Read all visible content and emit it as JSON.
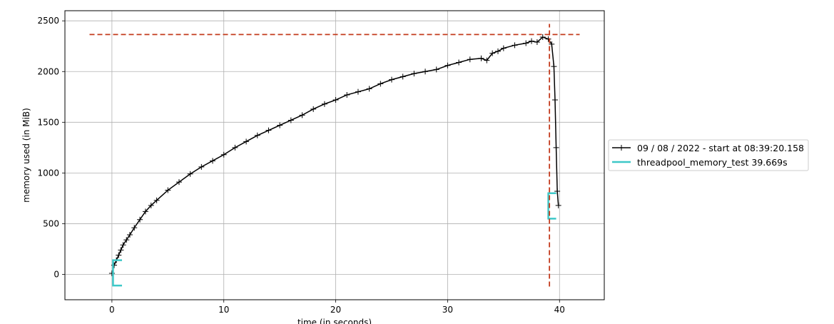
{
  "chart_data": {
    "type": "line",
    "title": "",
    "xlabel": "time (in seconds)",
    "ylabel": "memory used (in MiB)",
    "xlim": [
      -4.2,
      44
    ],
    "ylim": [
      -250,
      2600
    ],
    "xticks": [
      0,
      10,
      20,
      30,
      40
    ],
    "yticks": [
      0,
      500,
      1000,
      1500,
      2000,
      2500
    ],
    "grid": true,
    "legend_position": "outside-right",
    "series": [
      {
        "name": "09 / 08 / 2022 - start at 08:39:20.158",
        "color": "#000000",
        "marker": "+",
        "x": [
          0.0,
          0.2,
          0.4,
          0.6,
          0.8,
          1.0,
          1.3,
          1.6,
          2.0,
          2.5,
          3.0,
          3.5,
          4.0,
          5.0,
          6.0,
          7.0,
          8.0,
          9.0,
          10.0,
          11.0,
          12.0,
          13.0,
          14.0,
          15.0,
          16.0,
          17.0,
          18.0,
          19.0,
          20.0,
          21.0,
          22.0,
          23.0,
          24.0,
          25.0,
          26.0,
          27.0,
          28.0,
          29.0,
          30.0,
          31.0,
          32.0,
          33.0,
          33.5,
          34.0,
          34.5,
          35.0,
          36.0,
          37.0,
          37.5,
          38.0,
          38.5,
          39.0,
          39.3,
          39.5,
          39.6,
          39.7,
          39.8,
          39.9
        ],
        "y": [
          10,
          90,
          140,
          190,
          240,
          290,
          340,
          390,
          460,
          540,
          620,
          680,
          730,
          830,
          910,
          990,
          1060,
          1120,
          1180,
          1250,
          1310,
          1370,
          1420,
          1470,
          1520,
          1570,
          1630,
          1680,
          1720,
          1770,
          1800,
          1830,
          1880,
          1920,
          1950,
          1980,
          2000,
          2020,
          2060,
          2090,
          2120,
          2130,
          2110,
          2180,
          2200,
          2230,
          2260,
          2280,
          2300,
          2290,
          2340,
          2320,
          2270,
          2050,
          1720,
          1250,
          820,
          680
        ]
      },
      {
        "name": "threadpool_memory_test 39.669s",
        "color": "#3ec8c8",
        "brackets": [
          {
            "x_start": 0.1,
            "x_end": 0.9,
            "y_low": -110,
            "y_high": 140
          },
          {
            "x_start": 39.0,
            "x_end": 39.7,
            "y_low": 550,
            "y_high": 800
          }
        ]
      }
    ],
    "reference_lines": [
      {
        "orientation": "horizontal",
        "value": 2365,
        "x_from": -2.0,
        "x_to": 41.8,
        "color": "#c33b1d",
        "style": "dashed"
      },
      {
        "orientation": "vertical",
        "value": 39.1,
        "y_from": -120,
        "y_to": 2470,
        "color": "#c33b1d",
        "style": "dashed"
      }
    ]
  }
}
